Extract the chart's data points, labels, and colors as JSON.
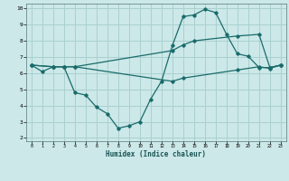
{
  "xlabel": "Humidex (Indice chaleur)",
  "bg_color": "#cce8e8",
  "grid_color": "#aad0d0",
  "line_color": "#1a6b6b",
  "xlim": [
    -0.5,
    23.5
  ],
  "ylim": [
    1.8,
    10.3
  ],
  "xticks": [
    0,
    1,
    2,
    3,
    4,
    5,
    6,
    7,
    8,
    9,
    10,
    11,
    12,
    13,
    14,
    15,
    16,
    17,
    18,
    19,
    20,
    21,
    22,
    23
  ],
  "yticks": [
    2,
    3,
    4,
    5,
    6,
    7,
    8,
    9,
    10
  ],
  "line1_x": [
    0,
    1,
    2,
    3,
    4,
    5,
    6,
    7,
    8,
    9,
    10,
    11,
    12,
    13,
    14,
    15,
    16,
    17,
    18,
    19,
    20,
    21,
    22,
    23
  ],
  "line1_y": [
    6.5,
    6.1,
    6.4,
    6.4,
    4.8,
    4.65,
    3.9,
    3.5,
    2.6,
    2.75,
    3.0,
    4.4,
    5.5,
    7.7,
    9.5,
    9.6,
    9.95,
    9.75,
    8.4,
    7.2,
    7.05,
    6.35,
    6.35,
    6.5
  ],
  "line2_x": [
    0,
    2,
    3,
    4,
    13,
    14,
    15,
    19,
    21,
    22,
    23
  ],
  "line2_y": [
    6.5,
    6.4,
    6.4,
    6.4,
    7.4,
    7.75,
    8.0,
    8.3,
    8.4,
    6.35,
    6.5
  ],
  "line3_x": [
    0,
    2,
    3,
    4,
    13,
    14,
    19,
    21,
    22,
    23
  ],
  "line3_y": [
    6.5,
    6.4,
    6.4,
    6.4,
    5.5,
    5.7,
    6.2,
    6.4,
    6.3,
    6.5
  ]
}
